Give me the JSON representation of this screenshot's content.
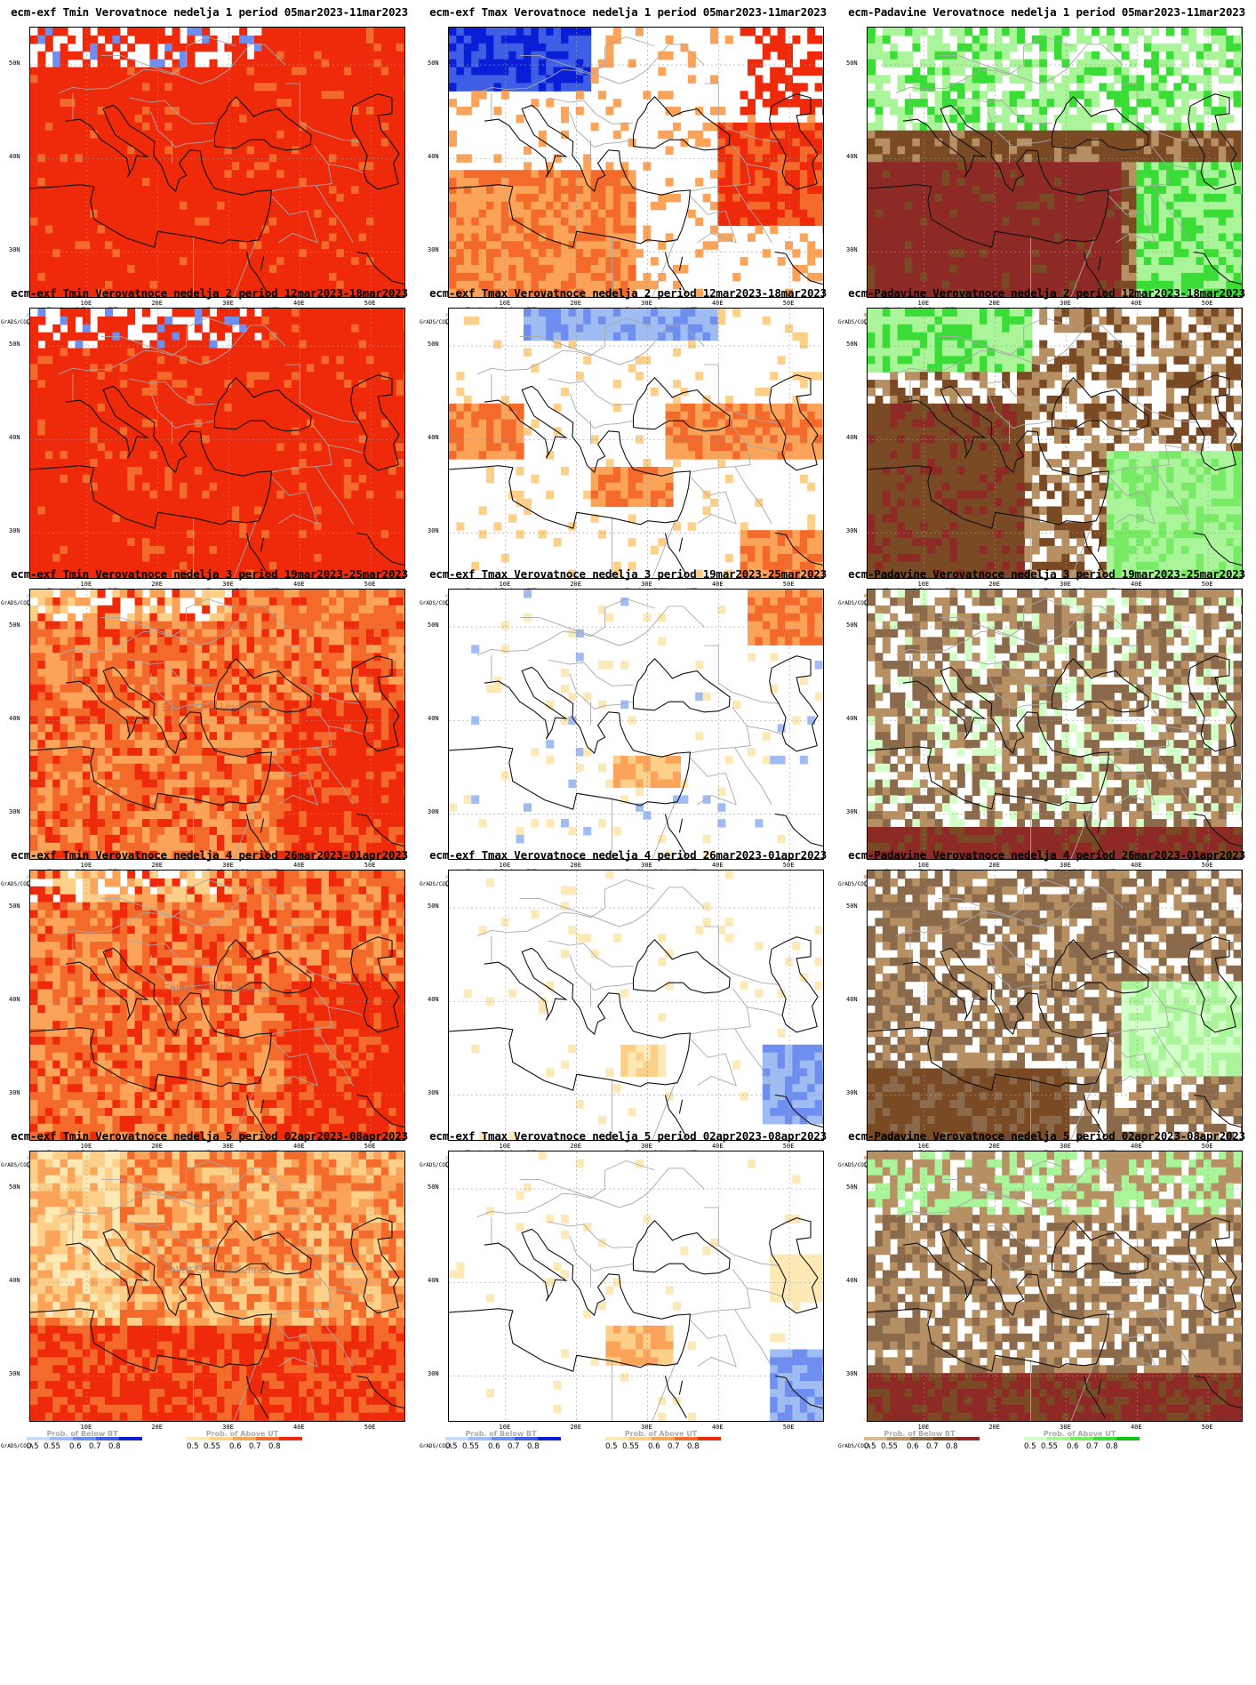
{
  "page": {
    "grads_label": "GrADS/COLA",
    "legend_ticks": [
      "0.5",
      "0.55",
      "0.6",
      "0.7",
      "0.8"
    ],
    "lat_labels": [
      "50N",
      "40N",
      "30N"
    ],
    "lon_labels": [
      "10E",
      "20E",
      "30E",
      "40E",
      "50E"
    ],
    "undefined_label": "Entire Grid Undefined",
    "legend_names": {
      "below": "Prob. of Below BT",
      "above": "Prob. of Above UT"
    },
    "colors": {
      "blue": [
        "#c7dcf6",
        "#9fbdf3",
        "#6e8ff0",
        "#3e5ee6",
        "#0a1ed8"
      ],
      "orange": [
        "#fde9b6",
        "#fdd08a",
        "#fca35a",
        "#f46a2a",
        "#ee2a0a"
      ],
      "brown": [
        "#d9b98f",
        "#b68f62",
        "#8a6a4a",
        "#7a4a24",
        "#8e2a26"
      ],
      "green": [
        "#d3ffc8",
        "#aaf49a",
        "#78ea66",
        "#3adc36",
        "#0fc40f"
      ]
    }
  },
  "rows": [
    {
      "panels": [
        {
          "title": "ecm-exf Tmin Verovatnoce nedelja 1 period 05mar2023-11mar2023",
          "kind": "tmin",
          "fill": "a_full_red",
          "undefined": false
        },
        {
          "title": "ecm-exf Tmax Verovatnoce nedelja 1 period 05mar2023-11mar2023",
          "kind": "tmax",
          "fill": "b_w1",
          "undefined": false
        },
        {
          "title": "ecm-Padavine Verovatnoce nedelja 1 period 05mar2023-11mar2023",
          "kind": "pad",
          "fill": "c_w1",
          "undefined": false
        }
      ]
    },
    {
      "panels": [
        {
          "title": "ecm-exf Tmin Verovatnoce nedelja 2 period 12mar2023-18mar2023",
          "kind": "tmin",
          "fill": "a_full_red",
          "undefined": false
        },
        {
          "title": "ecm-exf Tmax Verovatnoce nedelja 2 period 12mar2023-18mar2023",
          "kind": "tmax",
          "fill": "b_w2",
          "undefined": false
        },
        {
          "title": "ecm-Padavine Verovatnoce nedelja 2 period 12mar2023-18mar2023",
          "kind": "pad",
          "fill": "c_w2",
          "undefined": false
        }
      ]
    },
    {
      "panels": [
        {
          "title": "ecm-exf Tmin Verovatnoce nedelja 3 period 19mar2023-25mar2023",
          "kind": "tmin",
          "fill": "a_orange",
          "undefined": true
        },
        {
          "title": "ecm-exf Tmax Verovatnoce nedelja 3 period 19mar2023-25mar2023",
          "kind": "tmax",
          "fill": "b_w3",
          "undefined": false
        },
        {
          "title": "ecm-Padavine Verovatnoce nedelja 3 period 19mar2023-25mar2023",
          "kind": "pad",
          "fill": "c_w3",
          "undefined": false
        }
      ]
    },
    {
      "panels": [
        {
          "title": "ecm-exf Tmin Verovatnoce nedelja 4 period 26mar2023-01apr2023",
          "kind": "tmin",
          "fill": "a_orange",
          "undefined": true
        },
        {
          "title": "ecm-exf Tmax Verovatnoce nedelja 4 period 26mar2023-01apr2023",
          "kind": "tmax",
          "fill": "b_w4",
          "undefined": false
        },
        {
          "title": "ecm-Padavine Verovatnoce nedelja 4 period 26mar2023-01apr2023",
          "kind": "pad",
          "fill": "c_w4",
          "undefined": false
        }
      ]
    },
    {
      "panels": [
        {
          "title": "ecm-exf Tmin Verovatnoce nedelja 5 period 02apr2023-08apr2023",
          "kind": "tmin",
          "fill": "a_mixed",
          "undefined": true
        },
        {
          "title": "ecm-exf Tmax Verovatnoce nedelja 5 period 02apr2023-08apr2023",
          "kind": "tmax",
          "fill": "b_w5",
          "undefined": false
        },
        {
          "title": "ecm-Padavine Verovatnoce nedelja 5 period 02apr2023-08apr2023",
          "kind": "pad",
          "fill": "c_w5",
          "undefined": false
        }
      ]
    }
  ]
}
